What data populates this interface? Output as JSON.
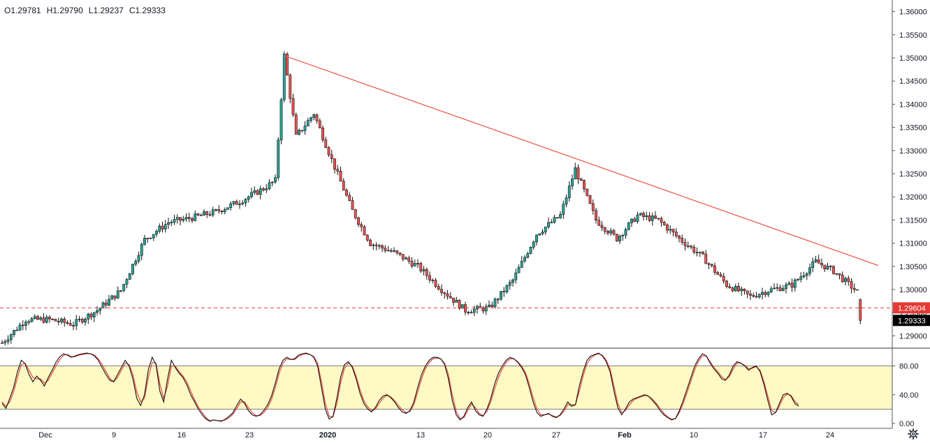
{
  "ohlc_readout": {
    "o": "O1.29781",
    "h": "H1.29790",
    "l": "L1.29237",
    "c": "C1.29333"
  },
  "colors": {
    "up": "#26a69a",
    "down": "#ef5350",
    "candle_border": "#111111",
    "trendline": "#f05a50",
    "support_line": "#e53935",
    "stoch_band": "#fff9c4",
    "stoch_k": "#111111",
    "stoch_d": "#e53935"
  },
  "chart_data": [
    {
      "type": "candlestick",
      "title": "",
      "x_tick_labels": [
        "Dec",
        "9",
        "16",
        "23",
        "2020",
        "13",
        "20",
        "27",
        "Feb",
        "10",
        "17",
        "24"
      ],
      "y_tick_labels": [
        "1.36000",
        "1.35500",
        "1.35000",
        "1.34500",
        "1.34000",
        "1.33500",
        "1.33000",
        "1.32500",
        "1.32000",
        "1.31500",
        "1.31000",
        "1.30500",
        "1.30000",
        "1.29500",
        "1.29000"
      ],
      "ylim": [
        1.2875,
        1.3625
      ],
      "candle_count": 290,
      "close_path": [
        [
          0,
          1.2885
        ],
        [
          8,
          1.2935
        ],
        [
          16,
          1.2935
        ],
        [
          24,
          1.2925
        ],
        [
          32,
          1.2955
        ],
        [
          40,
          1.2998
        ],
        [
          48,
          1.3108
        ],
        [
          56,
          1.3145
        ],
        [
          64,
          1.3155
        ],
        [
          72,
          1.3168
        ],
        [
          80,
          1.319
        ],
        [
          88,
          1.3218
        ],
        [
          92,
          1.3235
        ],
        [
          95,
          1.3505
        ],
        [
          99,
          1.333
        ],
        [
          105,
          1.338
        ],
        [
          111,
          1.328
        ],
        [
          118,
          1.317
        ],
        [
          124,
          1.31
        ],
        [
          132,
          1.308
        ],
        [
          140,
          1.305
        ],
        [
          148,
          1.3
        ],
        [
          156,
          1.2955
        ],
        [
          164,
          1.296
        ],
        [
          172,
          1.302
        ],
        [
          180,
          1.312
        ],
        [
          188,
          1.316
        ],
        [
          193,
          1.326
        ],
        [
          200,
          1.315
        ],
        [
          207,
          1.311
        ],
        [
          214,
          1.316
        ],
        [
          221,
          1.315
        ],
        [
          228,
          1.311
        ],
        [
          236,
          1.307
        ],
        [
          244,
          1.301
        ],
        [
          252,
          1.2985
        ],
        [
          258,
          1.2998
        ],
        [
          266,
          1.301
        ],
        [
          274,
          1.306
        ],
        [
          280,
          1.304
        ],
        [
          288,
          1.2995
        ]
      ],
      "annotations": {
        "trendline": {
          "start": [
            95,
            1.3505
          ],
          "end": [
            295,
            1.3052
          ]
        },
        "support_level": 1.29604,
        "price_labels": [
          "1.29604",
          "1.29333"
        ],
        "last_price": 1.29333
      }
    },
    {
      "type": "line",
      "title": "",
      "y_tick_labels": [
        "80.00",
        "40.00",
        "0.00"
      ],
      "ylim": [
        0,
        100
      ],
      "band": [
        20,
        80
      ],
      "series": [
        {
          "values": [
            28,
            21,
            35,
            50,
            72,
            88,
            83,
            68,
            58,
            66,
            60,
            52,
            64,
            74,
            85,
            93,
            97,
            95,
            92,
            94,
            96,
            97,
            98,
            97,
            94,
            88,
            78,
            68,
            60,
            58,
            68,
            78,
            88,
            80,
            62,
            35,
            25,
            40,
            75,
            92,
            82,
            45,
            30,
            62,
            88,
            78,
            70,
            64,
            54,
            40,
            30,
            20,
            12,
            6,
            3,
            5,
            4,
            3,
            6,
            10,
            15,
            25,
            34,
            28,
            18,
            12,
            10,
            12,
            18,
            26,
            38,
            56,
            76,
            88,
            92,
            89,
            90,
            95,
            97,
            98,
            96,
            92,
            80,
            50,
            20,
            6,
            10,
            35,
            65,
            82,
            86,
            78,
            62,
            42,
            28,
            20,
            16,
            22,
            32,
            38,
            40,
            36,
            30,
            22,
            16,
            14,
            18,
            30,
            50,
            68,
            80,
            88,
            92,
            92,
            90,
            82,
            62,
            32,
            12,
            5,
            10,
            22,
            30,
            18,
            12,
            10,
            20,
            35,
            55,
            70,
            80,
            88,
            92,
            90,
            85,
            78,
            68,
            50,
            30,
            15,
            10,
            12,
            14,
            10,
            8,
            12,
            20,
            30,
            24,
            26,
            52,
            72,
            88,
            94,
            96,
            98,
            94,
            86,
            72,
            45,
            22,
            12,
            20,
            30,
            34,
            36,
            38,
            40,
            38,
            32,
            26,
            18,
            12,
            8,
            5,
            7,
            18,
            32,
            48,
            64,
            80,
            90,
            97,
            94,
            84,
            76,
            70,
            62,
            60,
            68,
            80,
            86,
            84,
            80,
            74,
            78,
            80,
            72,
            54,
            32,
            12,
            15,
            28,
            40,
            42,
            38,
            28,
            24
          ]
        },
        {
          "values": [
            30,
            24,
            30,
            44,
            64,
            82,
            84,
            74,
            64,
            62,
            62,
            56,
            60,
            70,
            80,
            89,
            95,
            96,
            93,
            93,
            95,
            96,
            97,
            97,
            95,
            90,
            82,
            72,
            63,
            58,
            64,
            74,
            84,
            82,
            68,
            44,
            30,
            35,
            64,
            85,
            84,
            55,
            35,
            52,
            80,
            80,
            72,
            66,
            58,
            45,
            33,
            23,
            15,
            8,
            4,
            5,
            4,
            4,
            5,
            8,
            13,
            21,
            30,
            30,
            22,
            15,
            11,
            11,
            15,
            22,
            33,
            50,
            70,
            84,
            90,
            89,
            89,
            93,
            96,
            97,
            96,
            93,
            84,
            58,
            28,
            10,
            9,
            28,
            57,
            77,
            84,
            80,
            66,
            47,
            32,
            23,
            18,
            20,
            28,
            35,
            39,
            37,
            32,
            25,
            19,
            15,
            17,
            26,
            44,
            62,
            76,
            85,
            90,
            91,
            90,
            84,
            68,
            40,
            17,
            7,
            8,
            18,
            27,
            22,
            14,
            11,
            17,
            30,
            48,
            64,
            76,
            85,
            90,
            90,
            86,
            80,
            71,
            55,
            36,
            20,
            12,
            12,
            13,
            11,
            9,
            11,
            17,
            26,
            26,
            26,
            45,
            66,
            83,
            91,
            95,
            97,
            95,
            88,
            76,
            52,
            28,
            15,
            18,
            26,
            32,
            35,
            37,
            39,
            38,
            34,
            28,
            21,
            14,
            9,
            6,
            7,
            15,
            28,
            43,
            59,
            75,
            87,
            94,
            94,
            86,
            78,
            72,
            65,
            61,
            65,
            76,
            84,
            84,
            81,
            76,
            77,
            79,
            74,
            58,
            38,
            18,
            15,
            24,
            36,
            41,
            39,
            31,
            26
          ]
        }
      ]
    }
  ]
}
